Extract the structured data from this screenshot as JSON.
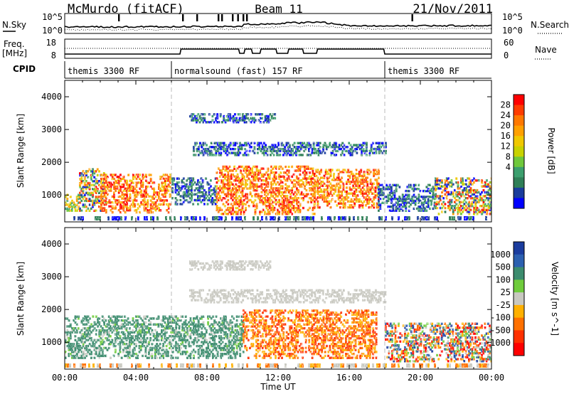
{
  "header": {
    "station": "McMurdo (fitACF)",
    "beam": "Beam 11",
    "date": "21/Nov/2011"
  },
  "top_panels": {
    "left_labels": {
      "nsky": "N.Sky",
      "freq": "Freq.",
      "freq_unit": "[MHz]",
      "cpid": "CPID"
    },
    "right_labels": {
      "nsearch": "N.Search",
      "nave": "Nave"
    },
    "noise_ticks_left": [
      "10^5",
      "10^0"
    ],
    "noise_ticks_right": [
      "10^5",
      "10^0"
    ],
    "freq_ticks": [
      "18",
      "8"
    ],
    "nave_ticks": [
      "60",
      "0"
    ],
    "cpid_segments": [
      {
        "label": "themis 3300 RF",
        "start_hour": 0,
        "end_hour": 6
      },
      {
        "label": "normalsound (fast) 157 RF",
        "start_hour": 6,
        "end_hour": 18
      },
      {
        "label": "themis 3300 RF",
        "start_hour": 18,
        "end_hour": 24
      }
    ]
  },
  "chart_data": [
    {
      "type": "heatmap",
      "panel": "power",
      "ylabel": "Slant Range [km]",
      "xlabel": "",
      "xlim": [
        0,
        24
      ],
      "ylim": [
        180,
        4500
      ],
      "yticks": [
        1000,
        2000,
        3000,
        4000
      ],
      "colorbar": {
        "label": "Power [dB]",
        "ticks": [
          "28",
          "24",
          "20",
          "16",
          "12",
          "8",
          "4"
        ],
        "colors": [
          "#ff0000",
          "#ff3c00",
          "#ff7800",
          "#ffa000",
          "#f0c800",
          "#c8d200",
          "#6fc83c",
          "#3c9f6e",
          "#2f7f57",
          "#1a3c9c",
          "#0000ff"
        ]
      },
      "echo_regions": [
        {
          "t0": 0.0,
          "t1": 0.8,
          "r0": 500,
          "r1": 1000,
          "level": "mid"
        },
        {
          "t0": 0.8,
          "t1": 2.3,
          "r0": 500,
          "r1": 1800,
          "level": "mixed"
        },
        {
          "t0": 2.0,
          "t1": 6.0,
          "r0": 450,
          "r1": 1600,
          "level": "high"
        },
        {
          "t0": 6.0,
          "t1": 8.5,
          "r0": 700,
          "r1": 1500,
          "level": "low"
        },
        {
          "t0": 8.5,
          "t1": 14.0,
          "r0": 400,
          "r1": 1900,
          "level": "high"
        },
        {
          "t0": 14.0,
          "t1": 17.6,
          "r0": 600,
          "r1": 1800,
          "level": "high"
        },
        {
          "t0": 17.6,
          "t1": 20.8,
          "r0": 500,
          "r1": 1300,
          "level": "low"
        },
        {
          "t0": 20.8,
          "t1": 24.0,
          "r0": 400,
          "r1": 1500,
          "level": "mixed"
        },
        {
          "t0": 7.0,
          "t1": 11.8,
          "r0": 3200,
          "r1": 3500,
          "level": "low"
        },
        {
          "t0": 7.2,
          "t1": 18.0,
          "r0": 2200,
          "r1": 2600,
          "level": "low"
        }
      ]
    },
    {
      "type": "heatmap",
      "panel": "velocity",
      "ylabel": "Slant Range [km]",
      "xlabel": "Time UT",
      "xlim": [
        0,
        24
      ],
      "ylim": [
        180,
        4500
      ],
      "xticks": [
        "00:00",
        "04:00",
        "08:00",
        "12:00",
        "16:00",
        "20:00",
        "00:00"
      ],
      "yticks": [
        1000,
        2000,
        3000,
        4000
      ],
      "colorbar": {
        "label": "Velocity [m s^-1]",
        "ticks": [
          "1000",
          "500",
          "100",
          "25",
          "-25",
          "-100",
          "-500",
          "-1000"
        ],
        "colors": [
          "#1b3c9e",
          "#2c60b0",
          "#3c8c6e",
          "#6fcc3c",
          "#c8c8c0",
          "#ffb000",
          "#ff7000",
          "#ff3000",
          "#ff0000"
        ]
      },
      "echo_regions": [
        {
          "t0": 0.0,
          "t1": 10.0,
          "r0": 500,
          "r1": 1800,
          "sign": "positive"
        },
        {
          "t0": 10.0,
          "t1": 17.5,
          "r0": 500,
          "r1": 2000,
          "sign": "negative"
        },
        {
          "t0": 18.0,
          "t1": 24.0,
          "r0": 400,
          "r1": 1600,
          "sign": "mixed"
        },
        {
          "t0": 7.0,
          "t1": 18.0,
          "r0": 2200,
          "r1": 2600,
          "sign": "zero"
        },
        {
          "t0": 7.0,
          "t1": 11.5,
          "r0": 3200,
          "r1": 3500,
          "sign": "zero"
        }
      ]
    }
  ]
}
